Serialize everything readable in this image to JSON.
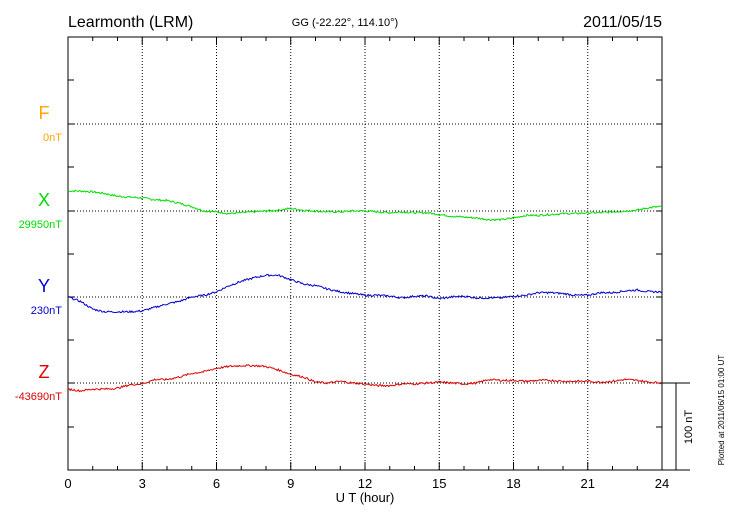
{
  "header": {
    "station": "Learmonth (LRM)",
    "coords": "GG (-22.22°, 114.10°)",
    "date": "2011/05/15"
  },
  "plotted_note": "Plotted at 2011/06/15 01:00 UT",
  "scale_label": "100 nT",
  "chart_data": {
    "type": "line",
    "xlabel": "U T (hour)",
    "xlim": [
      0,
      24
    ],
    "xticks": [
      "0",
      "3",
      "6",
      "9",
      "12",
      "15",
      "18",
      "21",
      "24"
    ],
    "scale_nT": 100,
    "series": [
      {
        "name": "F",
        "label": "0nT",
        "color": "#ffa500",
        "baseline_nT": 0,
        "x": [],
        "y": []
      },
      {
        "name": "X",
        "label": "29950nT",
        "color": "#00dd00",
        "baseline_nT": 29950,
        "x": [
          0,
          0.5,
          1,
          1.5,
          2,
          2.5,
          3,
          3.5,
          4,
          4.5,
          5,
          5.5,
          6,
          6.5,
          7,
          7.5,
          8,
          8.5,
          9,
          9.5,
          10,
          10.5,
          11,
          11.5,
          12,
          12.5,
          13,
          13.5,
          14,
          14.5,
          15,
          15.5,
          16,
          16.5,
          17,
          17.5,
          18,
          18.5,
          19,
          19.5,
          20,
          20.5,
          21,
          21.5,
          22,
          22.5,
          23,
          23.5,
          24
        ],
        "y": [
          29973,
          29973,
          29972,
          29970,
          29967,
          29966,
          29965,
          29963,
          29962,
          29959,
          29955,
          29950,
          29949,
          29947,
          29948,
          29949,
          29950,
          29951,
          29953,
          29951,
          29950,
          29949,
          29949,
          29950,
          29950,
          29949,
          29948,
          29949,
          29948,
          29948,
          29946,
          29944,
          29943,
          29942,
          29940,
          29940,
          29942,
          29945,
          29945,
          29946,
          29947,
          29947,
          29948,
          29948,
          29949,
          29950,
          29951,
          29954,
          29955
        ]
      },
      {
        "name": "Y",
        "label": "230nT",
        "color": "#0000cc",
        "baseline_nT": 230,
        "x": [
          0,
          0.5,
          1,
          1.5,
          2,
          2.5,
          3,
          3.5,
          4,
          4.5,
          5,
          5.5,
          6,
          6.5,
          7,
          7.5,
          8,
          8.5,
          9,
          9.5,
          10,
          10.5,
          11,
          11.5,
          12,
          12.5,
          13,
          13.5,
          14,
          14.5,
          15,
          15.5,
          16,
          16.5,
          17,
          17.5,
          18,
          18.5,
          19,
          19.5,
          20,
          20.5,
          21,
          21.5,
          22,
          22.5,
          23,
          23.5,
          24
        ],
        "y": [
          230,
          225,
          216,
          213,
          213,
          213,
          214,
          218,
          222,
          225,
          230,
          232,
          236,
          243,
          248,
          252,
          255,
          255,
          250,
          245,
          243,
          239,
          236,
          234,
          232,
          232,
          231,
          229,
          231,
          231,
          228,
          230,
          231,
          229,
          229,
          229,
          231,
          232,
          235,
          235,
          234,
          232,
          232,
          235,
          235,
          237,
          238,
          236,
          236
        ]
      },
      {
        "name": "Z",
        "label": "-43690nT",
        "color": "#dd0000",
        "baseline_nT": -43690,
        "x": [
          0,
          0.5,
          1,
          1.5,
          2,
          2.5,
          3,
          3.5,
          4,
          4.5,
          5,
          5.5,
          6,
          6.5,
          7,
          7.5,
          8,
          8.5,
          9,
          9.5,
          10,
          10.5,
          11,
          11.5,
          12,
          12.5,
          13,
          13.5,
          14,
          14.5,
          15,
          15.5,
          16,
          16.5,
          17,
          17.5,
          18,
          18.5,
          19,
          19.5,
          20,
          20.5,
          21,
          21.5,
          22,
          22.5,
          23,
          23.5,
          24
        ],
        "y": [
          -43697,
          -43699,
          -43697,
          -43697,
          -43696,
          -43692,
          -43691,
          -43686,
          -43686,
          -43683,
          -43679,
          -43677,
          -43673,
          -43671,
          -43670,
          -43670,
          -43671,
          -43675,
          -43680,
          -43683,
          -43689,
          -43690,
          -43688,
          -43690,
          -43691,
          -43693,
          -43693,
          -43691,
          -43691,
          -43690,
          -43689,
          -43690,
          -43691,
          -43690,
          -43686,
          -43687,
          -43687,
          -43688,
          -43687,
          -43687,
          -43688,
          -43688,
          -43688,
          -43689,
          -43688,
          -43686,
          -43687,
          -43689,
          -43690
        ]
      }
    ]
  }
}
